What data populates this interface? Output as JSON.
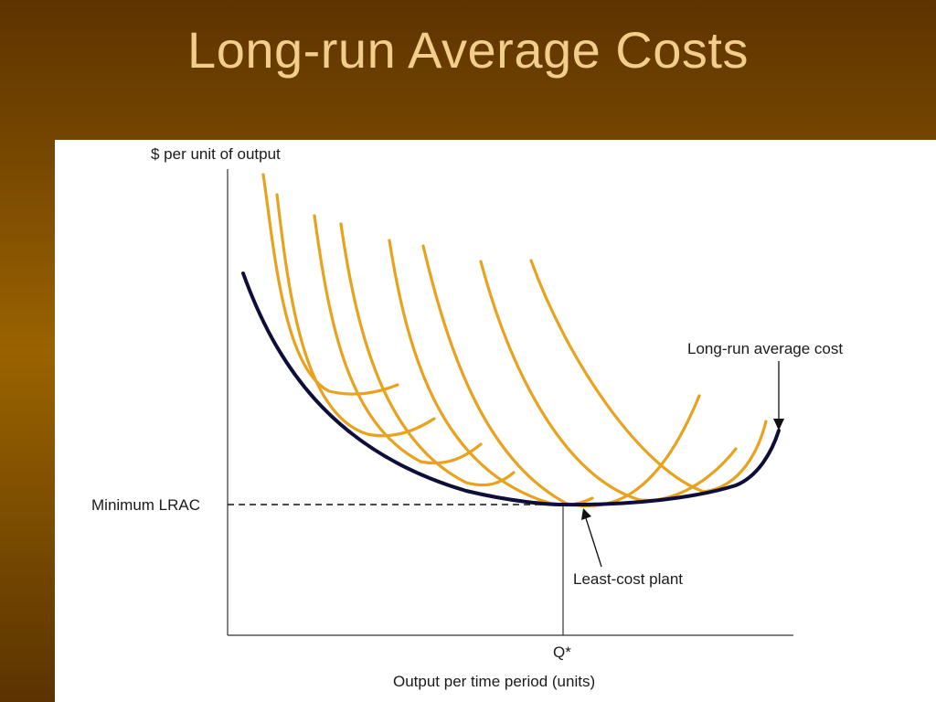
{
  "slide": {
    "title": "Long-run Average Costs"
  },
  "diagram": {
    "y_axis_label": "$ per unit of output",
    "x_axis_label": "Output per time period (units)",
    "min_lrac_label": "Minimum LRAC",
    "q_star_label": "Q*",
    "lrac_label": "Long-run average cost",
    "least_cost_label": "Least-cost plant",
    "colors": {
      "short_run_curves": "#e8a21e",
      "long_run_curve": "#0e0e3a",
      "axes": "#333333"
    }
  }
}
